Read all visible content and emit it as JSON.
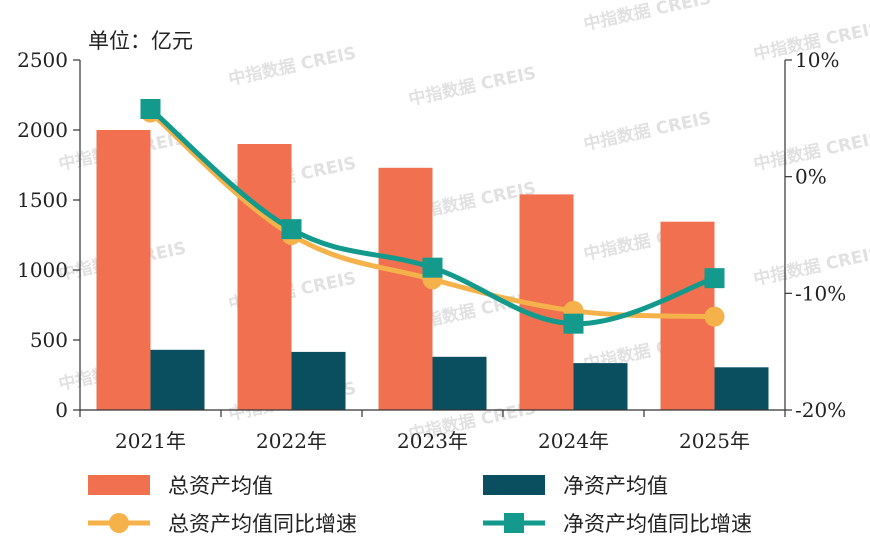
{
  "watermark": "中指数据 CREIS",
  "chart_data": {
    "type": "bar+line",
    "unit_label": "单位：亿元",
    "categories": [
      "2021年",
      "2022年",
      "2023年",
      "2024年",
      "2025年"
    ],
    "y_left": {
      "min": 0,
      "max": 2500,
      "ticks": [
        "0",
        "500",
        "1000",
        "1500",
        "2000",
        "2500"
      ]
    },
    "y_right": {
      "min": -20,
      "max": 10,
      "ticks": [
        "-20%",
        "-10%",
        "0%",
        "10%"
      ]
    },
    "bar_series": [
      {
        "name": "总资产均值",
        "color": "#f07050",
        "values": [
          2000,
          1900,
          1730,
          1540,
          1345
        ]
      },
      {
        "name": "净资产均值",
        "color": "#0a4f5f",
        "values": [
          430,
          415,
          380,
          335,
          305
        ]
      }
    ],
    "line_series": [
      {
        "name": "总资产均值同比增速",
        "color": "#f5b24a",
        "marker": "circle",
        "values": [
          5.5,
          -5.0,
          -8.8,
          -11.5,
          -12.0
        ]
      },
      {
        "name": "净资产均值同比增速",
        "color": "#139a8c",
        "marker": "square",
        "values": [
          5.8,
          -4.5,
          -7.8,
          -12.6,
          -8.7
        ]
      }
    ],
    "legend_position": "bottom"
  }
}
